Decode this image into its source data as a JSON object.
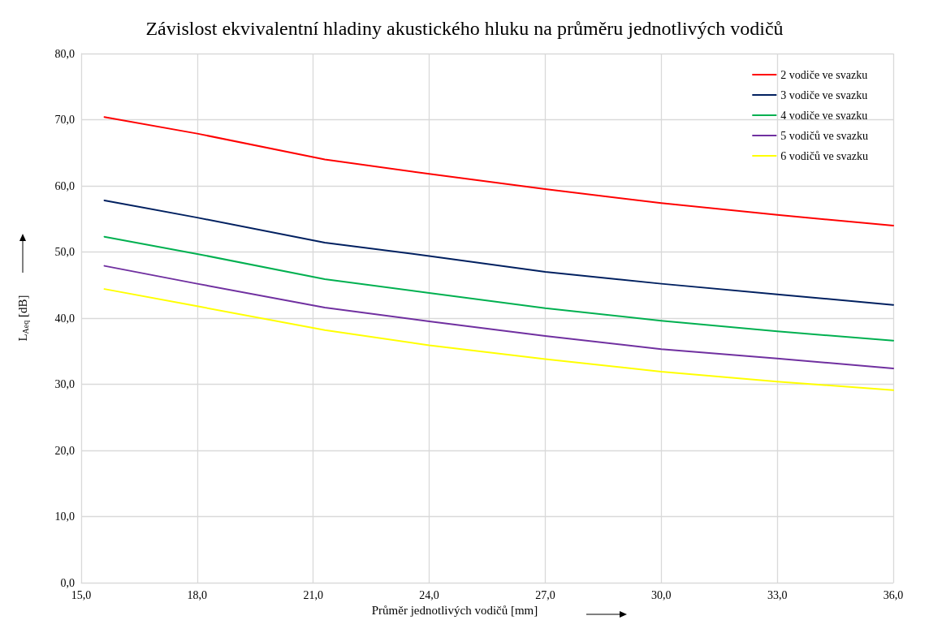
{
  "chart_data": {
    "type": "line",
    "title": "Závislost ekvivalentní hladiny akustického hluku na průměru jednotlivých vodičů",
    "xlabel": "Průměr jednotlivých vodičů [mm]",
    "ylabel": "L$_{Aeq}$ [dB]",
    "x": [
      15.6,
      18,
      21.3,
      24,
      27,
      30,
      33,
      36
    ],
    "series": [
      {
        "name": "2 vodiče ve svazku",
        "color": "#ff0000",
        "values": [
          70.4,
          67.9,
          64.0,
          61.8,
          59.5,
          57.4,
          55.6,
          54.0
        ]
      },
      {
        "name": "3 vodiče ve svazku",
        "color": "#002060",
        "values": [
          57.8,
          55.2,
          51.4,
          49.4,
          47.0,
          45.2,
          43.6,
          42.0
        ]
      },
      {
        "name": "4 vodiče ve svazku",
        "color": "#00b050",
        "values": [
          52.3,
          49.7,
          45.9,
          43.8,
          41.5,
          39.6,
          38.0,
          36.6
        ]
      },
      {
        "name": "5 vodičů ve svazku",
        "color": "#7030a0",
        "values": [
          47.9,
          45.2,
          41.6,
          39.5,
          37.3,
          35.3,
          33.9,
          32.4
        ]
      },
      {
        "name": "6 vodičů ve svazku",
        "color": "#ffff00",
        "values": [
          44.4,
          41.8,
          38.2,
          35.9,
          33.8,
          31.9,
          30.4,
          29.1
        ]
      }
    ],
    "xlim": [
      15,
      36
    ],
    "xticks": [
      {
        "value": 15,
        "label": "15,0"
      },
      {
        "value": 18,
        "label": "18,0"
      },
      {
        "value": 21,
        "label": "21,0"
      },
      {
        "value": 24,
        "label": "24,0"
      },
      {
        "value": 27,
        "label": "27,0"
      },
      {
        "value": 30,
        "label": "30,0"
      },
      {
        "value": 33,
        "label": "33,0"
      },
      {
        "value": 36,
        "label": "36,0"
      }
    ],
    "ylim": [
      0,
      80
    ],
    "yticks": [
      {
        "value": 0,
        "label": "0,0"
      },
      {
        "value": 10,
        "label": "10,0"
      },
      {
        "value": 20,
        "label": "20,0"
      },
      {
        "value": 30,
        "label": "30,0"
      },
      {
        "value": 40,
        "label": "40,0"
      },
      {
        "value": 50,
        "label": "50,0"
      },
      {
        "value": 60,
        "label": "60,0"
      },
      {
        "value": 70,
        "label": "70,0"
      },
      {
        "value": 80,
        "label": "80,0"
      }
    ],
    "grid": true,
    "legend": "top right",
    "marker": "none",
    "line_style": "solid"
  }
}
